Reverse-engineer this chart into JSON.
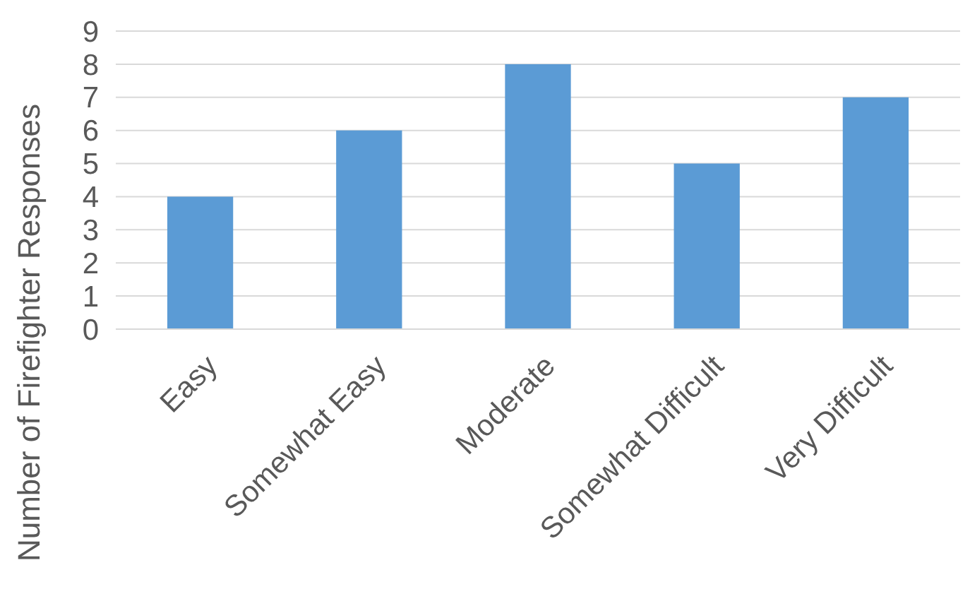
{
  "chart_data": {
    "type": "bar",
    "ylabel": "Number of Firefighter Responses",
    "categories": [
      "Easy",
      "Somewhat Easy",
      "Moderate",
      "Somewhat Difficult",
      "Very Difficult"
    ],
    "values": [
      4,
      6,
      8,
      5,
      7
    ],
    "color": "#5b9bd5",
    "ylim": [
      0,
      9
    ],
    "yticks": [
      0,
      1,
      2,
      3,
      4,
      5,
      6,
      7,
      8,
      9
    ],
    "grid": "y"
  }
}
